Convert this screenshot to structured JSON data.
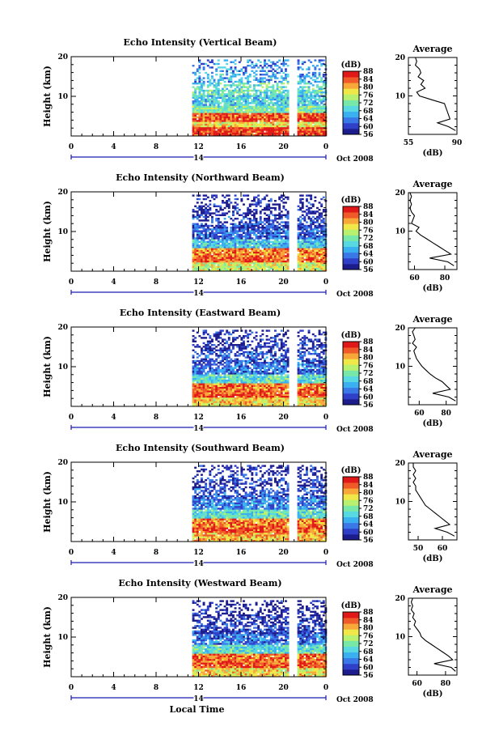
{
  "figure": {
    "x_axis_label": "Local Time",
    "date_label": "Oct 2008",
    "day_label": "14",
    "y_axis_label": "Height (km)",
    "colorbar_unit": "(dB)",
    "profile_title": "Average",
    "profile_xlabel": "(dB)"
  },
  "colorbar": {
    "ticks": [
      "56",
      "60",
      "64",
      "68",
      "72",
      "76",
      "80",
      "84",
      "88"
    ],
    "range": [
      56,
      88
    ],
    "colors": [
      "#1c1c8c",
      "#2f3fc8",
      "#3a78e8",
      "#3ab0f0",
      "#58d8e0",
      "#78e8a8",
      "#b8f070",
      "#f0e848",
      "#f8a838",
      "#f05a28",
      "#e01818"
    ]
  },
  "chart_data": [
    {
      "type": "heatmap",
      "title": "Echo Intensity (Vertical Beam)",
      "x_ticks": [
        "0",
        "4",
        "8",
        "12",
        "16",
        "20",
        "0"
      ],
      "xlim": [
        0,
        24
      ],
      "ylim": [
        0,
        20
      ],
      "y_ticks": [
        "20",
        "10"
      ],
      "data_start_hour": 11.4,
      "gap_hours": [
        20.5,
        21.2
      ],
      "layers": [
        {
          "height_km": 1.5,
          "db": 86
        },
        {
          "height_km": 3.0,
          "db": 78
        },
        {
          "height_km": 5.0,
          "db": 84
        },
        {
          "height_km": 7.0,
          "db": 72
        },
        {
          "height_km": 9.0,
          "db": 68
        },
        {
          "height_km": 12.0,
          "db": 70
        },
        {
          "height_km": 15.0,
          "db": 66
        },
        {
          "height_km": 18.0,
          "db": 64
        }
      ],
      "profile": {
        "xticks": [
          "55",
          "90"
        ],
        "xlim": [
          55,
          90
        ],
        "heights": [
          1,
          2,
          3,
          4,
          5,
          6,
          7,
          8,
          9,
          10,
          11,
          12,
          13,
          14,
          15,
          16,
          17,
          18,
          19,
          20
        ],
        "values": [
          89,
          84,
          76,
          85,
          84,
          83,
          82,
          81,
          72,
          63,
          61,
          67,
          64,
          66,
          62,
          64,
          63,
          60,
          61,
          60
        ]
      }
    },
    {
      "type": "heatmap",
      "title": "Echo Intensity (Northward Beam)",
      "x_ticks": [
        "0",
        "4",
        "8",
        "12",
        "16",
        "20",
        "0"
      ],
      "xlim": [
        0,
        24
      ],
      "ylim": [
        0,
        20
      ],
      "y_ticks": [
        "20",
        "10"
      ],
      "data_start_hour": 11.4,
      "gap_hours": [
        20.5,
        21.2
      ],
      "layers": [
        {
          "height_km": 1.5,
          "db": 76
        },
        {
          "height_km": 3.0,
          "db": 84
        },
        {
          "height_km": 5.0,
          "db": 82
        },
        {
          "height_km": 7.0,
          "db": 68
        },
        {
          "height_km": 9.5,
          "db": 62
        },
        {
          "height_km": 12.5,
          "db": 60
        },
        {
          "height_km": 15.5,
          "db": 58
        },
        {
          "height_km": 18.5,
          "db": 58
        }
      ],
      "profile": {
        "xticks": [
          "60",
          "80"
        ],
        "xlim": [
          56,
          88
        ],
        "heights": [
          1,
          2,
          3,
          4,
          5,
          6,
          7,
          8,
          9,
          10,
          11,
          12,
          13,
          14,
          15,
          16,
          17,
          18,
          19,
          20
        ],
        "values": [
          86,
          82,
          70,
          84,
          80,
          76,
          72,
          68,
          64,
          61,
          63,
          58,
          59,
          60,
          58,
          57,
          58,
          57,
          58,
          57
        ]
      }
    },
    {
      "type": "heatmap",
      "title": "Echo Intensity (Eastward Beam)",
      "x_ticks": [
        "0",
        "4",
        "8",
        "12",
        "16",
        "20",
        "0"
      ],
      "xlim": [
        0,
        24
      ],
      "ylim": [
        0,
        20
      ],
      "y_ticks": [
        "20",
        "10"
      ],
      "data_start_hour": 11.4,
      "gap_hours": [
        20.5,
        21.2
      ],
      "layers": [
        {
          "height_km": 1.5,
          "db": 78
        },
        {
          "height_km": 3.0,
          "db": 84
        },
        {
          "height_km": 5.0,
          "db": 83
        },
        {
          "height_km": 7.0,
          "db": 70
        },
        {
          "height_km": 9.5,
          "db": 63
        },
        {
          "height_km": 12.5,
          "db": 61
        },
        {
          "height_km": 15.5,
          "db": 59
        },
        {
          "height_km": 18.5,
          "db": 58
        }
      ],
      "profile": {
        "xticks": [
          "60",
          "80"
        ],
        "xlim": [
          52,
          88
        ],
        "heights": [
          1,
          2,
          3,
          4,
          5,
          6,
          7,
          8,
          9,
          10,
          11,
          12,
          13,
          14,
          15,
          16,
          17,
          18,
          19,
          20
        ],
        "values": [
          87,
          82,
          70,
          83,
          80,
          77,
          72,
          68,
          65,
          62,
          60,
          58,
          57,
          56,
          58,
          55,
          57,
          56,
          55,
          57
        ]
      }
    },
    {
      "type": "heatmap",
      "title": "Echo Intensity (Southward Beam)",
      "x_ticks": [
        "0",
        "4",
        "8",
        "12",
        "16",
        "20",
        "0"
      ],
      "xlim": [
        0,
        24
      ],
      "ylim": [
        0,
        20
      ],
      "y_ticks": [
        "20",
        "10"
      ],
      "data_start_hour": 11.4,
      "gap_hours": [
        20.5,
        21.2
      ],
      "layers": [
        {
          "height_km": 1.5,
          "db": 80
        },
        {
          "height_km": 3.0,
          "db": 84
        },
        {
          "height_km": 5.0,
          "db": 82
        },
        {
          "height_km": 7.0,
          "db": 70
        },
        {
          "height_km": 9.5,
          "db": 64
        },
        {
          "height_km": 12.5,
          "db": 61
        },
        {
          "height_km": 15.5,
          "db": 59
        },
        {
          "height_km": 18.5,
          "db": 58
        }
      ],
      "profile": {
        "xticks": [
          "50",
          "60"
        ],
        "xlim": [
          46,
          66
        ],
        "heights": [
          1,
          2,
          3,
          4,
          5,
          6,
          7,
          8,
          9,
          10,
          11,
          12,
          13,
          14,
          15,
          16,
          17,
          18,
          19,
          20
        ],
        "values": [
          65,
          62,
          57,
          63,
          61,
          59,
          57,
          55,
          53,
          52,
          51,
          50,
          49,
          49,
          48,
          49,
          48,
          49,
          48,
          48
        ]
      }
    },
    {
      "type": "heatmap",
      "title": "Echo Intensity (Westward Beam)",
      "x_ticks": [
        "0",
        "4",
        "8",
        "12",
        "16",
        "20",
        "0"
      ],
      "xlim": [
        0,
        24
      ],
      "ylim": [
        0,
        20
      ],
      "y_ticks": [
        "20",
        "10"
      ],
      "data_start_hour": 11.4,
      "gap_hours": [
        20.5,
        21.2
      ],
      "layers": [
        {
          "height_km": 1.5,
          "db": 78
        },
        {
          "height_km": 3.0,
          "db": 84
        },
        {
          "height_km": 5.0,
          "db": 83
        },
        {
          "height_km": 7.0,
          "db": 70
        },
        {
          "height_km": 9.5,
          "db": 63
        },
        {
          "height_km": 12.5,
          "db": 60
        },
        {
          "height_km": 15.5,
          "db": 58
        },
        {
          "height_km": 18.5,
          "db": 57
        }
      ],
      "profile": {
        "xticks": [
          "60",
          "80"
        ],
        "xlim": [
          54,
          88
        ],
        "heights": [
          1,
          2,
          3,
          4,
          5,
          6,
          7,
          8,
          9,
          10,
          11,
          12,
          13,
          14,
          15,
          16,
          17,
          18,
          19,
          20
        ],
        "values": [
          87,
          84,
          72,
          85,
          82,
          78,
          74,
          70,
          66,
          63,
          62,
          60,
          58,
          59,
          57,
          58,
          56,
          57,
          56,
          57
        ]
      }
    }
  ]
}
